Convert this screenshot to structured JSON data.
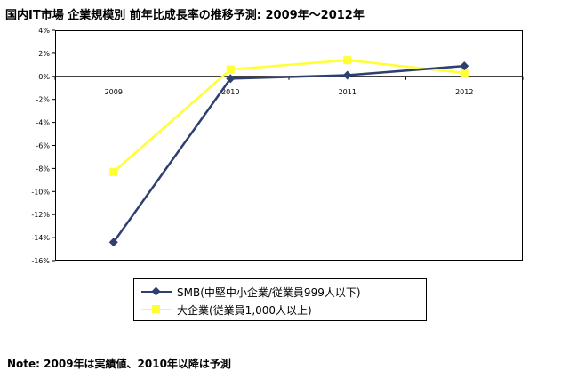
{
  "title": "国内IT市場 企業規模別 前年比成長率の推移予測: 2009年～2012年",
  "note": "Note: 2009年は実績値、2010年以降は予測",
  "chart_data": {
    "type": "line",
    "title": "国内IT市場 企業規模別 前年比成長率の推移予測: 2009年～2012年",
    "categories": [
      "2009",
      "2010",
      "2011",
      "2012"
    ],
    "series": [
      {
        "name": "SMB(中堅中小企業/従業員999人以下)",
        "values": [
          -14.4,
          -0.2,
          0.1,
          0.9
        ],
        "color": "#2f3f6f",
        "marker": "diamond"
      },
      {
        "name": "大企業(従業員1,000人以上)",
        "values": [
          -8.3,
          0.6,
          1.4,
          0.3
        ],
        "color": "#ffff33",
        "marker": "square"
      }
    ],
    "yticks": [
      "4%",
      "2%",
      "0%",
      "-2%",
      "-4%",
      "-6%",
      "-8%",
      "-10%",
      "-12%",
      "-14%",
      "-16%"
    ],
    "ylim": [
      -16,
      4
    ],
    "grid": false,
    "legend_position": "bottom"
  }
}
